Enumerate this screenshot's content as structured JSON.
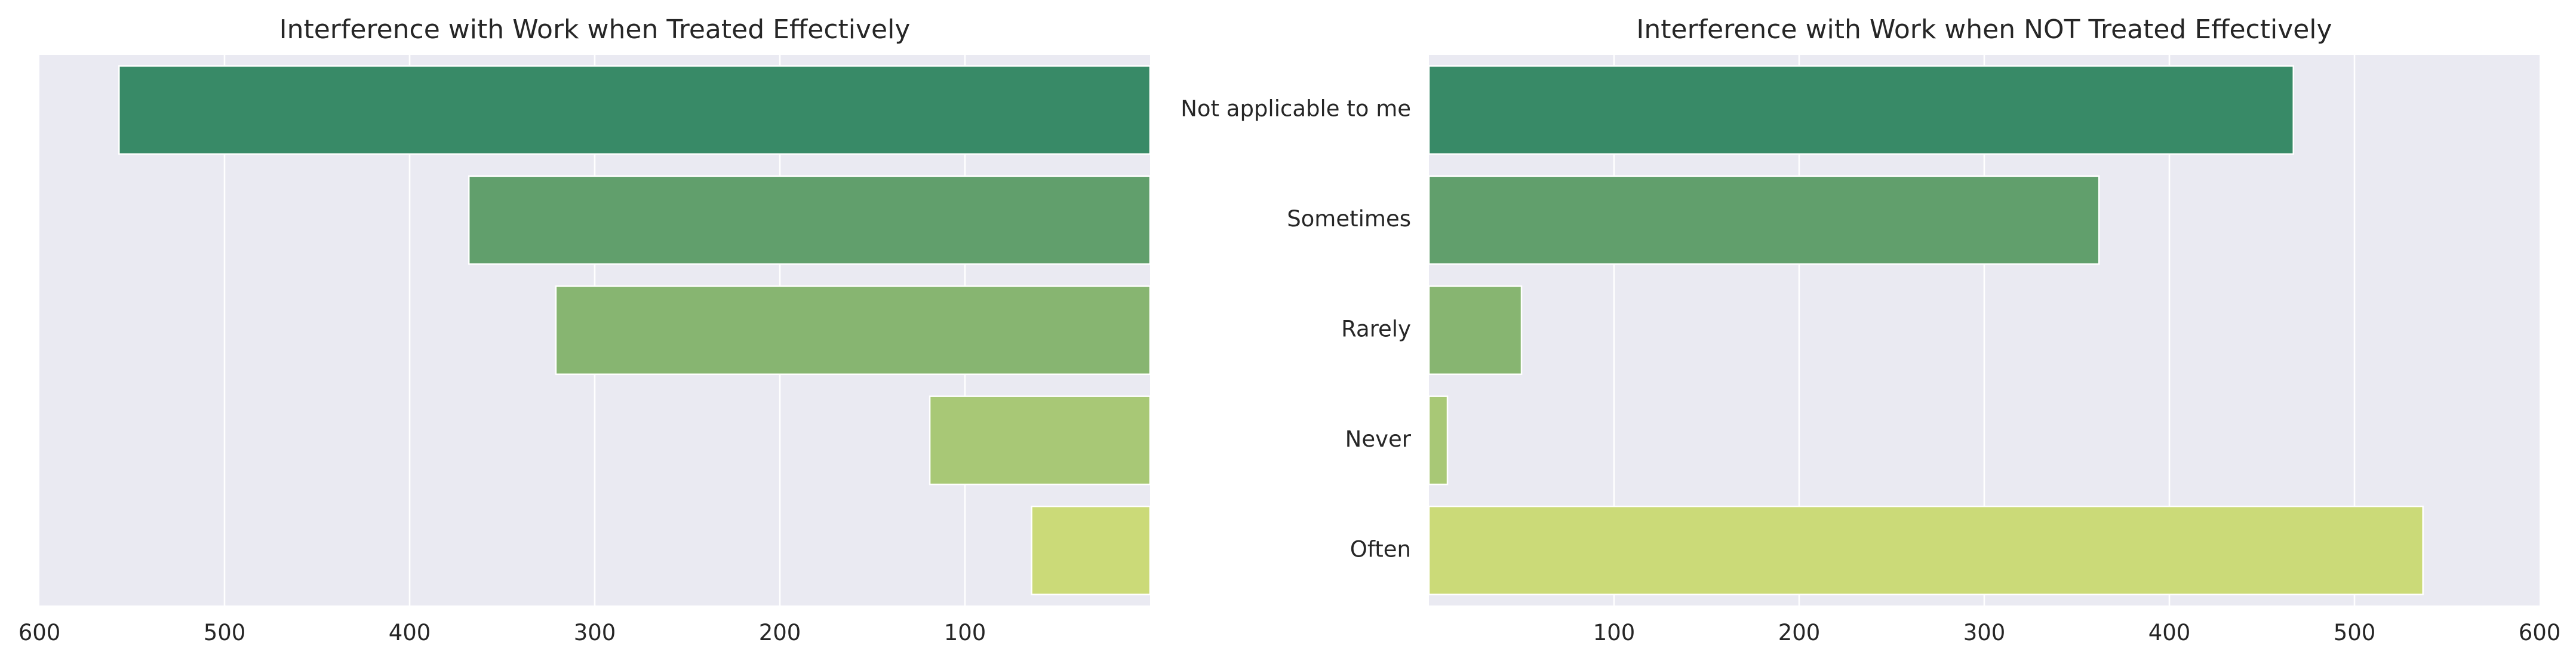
{
  "colors": {
    "background": "#eaeaf2",
    "grid": "#ffffff",
    "text": "#262626",
    "bars": [
      "#388a67",
      "#619f6c",
      "#87b571",
      "#a8c876",
      "#cbda78"
    ]
  },
  "chart_data": [
    {
      "type": "bar",
      "orientation": "horizontal",
      "title": "Interference with Work when Treated Effectively",
      "xlabel": "",
      "ylabel": "",
      "categories": [
        "Not applicable to me",
        "Sometimes",
        "Rarely",
        "Never",
        "Often"
      ],
      "show_category_labels": false,
      "values": [
        557,
        368,
        321,
        119,
        64
      ],
      "xlim": [
        600,
        0
      ],
      "x_inverted": true,
      "xticks": [
        600,
        500,
        400,
        300,
        200,
        100
      ],
      "grid": true
    },
    {
      "type": "bar",
      "orientation": "horizontal",
      "title": "Interference with Work when NOT Treated Effectively",
      "xlabel": "",
      "ylabel": "",
      "categories": [
        "Not applicable to me",
        "Sometimes",
        "Rarely",
        "Never",
        "Often"
      ],
      "show_category_labels": true,
      "values": [
        467,
        362,
        50,
        10,
        537
      ],
      "xlim": [
        0,
        600
      ],
      "x_inverted": false,
      "xticks": [
        100,
        200,
        300,
        400,
        500,
        600
      ],
      "grid": true
    }
  ]
}
